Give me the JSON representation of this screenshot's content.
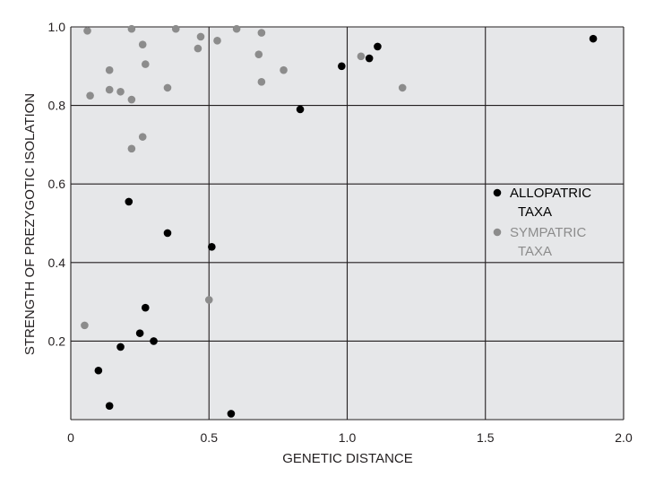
{
  "chart_data": {
    "type": "scatter",
    "xlabel": "GENETIC DISTANCE",
    "ylabel": "STRENGTH OF PREZYGOTIC ISOLATION",
    "xlim": [
      0,
      2.0
    ],
    "ylim": [
      0,
      1.0
    ],
    "x_ticks": [
      {
        "value": 0,
        "label": "0"
      },
      {
        "value": 0.5,
        "label": "0.5"
      },
      {
        "value": 1.0,
        "label": "1.0"
      },
      {
        "value": 1.5,
        "label": "1.5"
      },
      {
        "value": 2.0,
        "label": "2.0"
      }
    ],
    "y_ticks": [
      {
        "value": 0.2,
        "label": "0.2"
      },
      {
        "value": 0.4,
        "label": "0.4"
      },
      {
        "value": 0.6,
        "label": "0.6"
      },
      {
        "value": 0.8,
        "label": "0.8"
      },
      {
        "value": 1.0,
        "label": "1.0"
      }
    ],
    "grid": true,
    "legend_position": "right",
    "series": [
      {
        "name": "ALLOPATRIC TAXA",
        "legend_lines": [
          "ALLOPATRIC",
          "TAXA"
        ],
        "color": "#000000",
        "points": [
          {
            "x": 1.89,
            "y": 0.97
          },
          {
            "x": 1.11,
            "y": 0.95
          },
          {
            "x": 1.08,
            "y": 0.92
          },
          {
            "x": 0.98,
            "y": 0.9
          },
          {
            "x": 0.83,
            "y": 0.79
          },
          {
            "x": 0.21,
            "y": 0.555
          },
          {
            "x": 0.35,
            "y": 0.475
          },
          {
            "x": 0.51,
            "y": 0.44
          },
          {
            "x": 0.27,
            "y": 0.285
          },
          {
            "x": 0.25,
            "y": 0.22
          },
          {
            "x": 0.3,
            "y": 0.2
          },
          {
            "x": 0.18,
            "y": 0.185
          },
          {
            "x": 0.1,
            "y": 0.125
          },
          {
            "x": 0.14,
            "y": 0.035
          },
          {
            "x": 0.58,
            "y": 0.015
          }
        ]
      },
      {
        "name": "SYMPATRIC TAXA",
        "legend_lines": [
          "SYMPATRIC",
          "TAXA"
        ],
        "color": "#8c8c8c",
        "points": [
          {
            "x": 0.06,
            "y": 0.99
          },
          {
            "x": 0.22,
            "y": 0.995
          },
          {
            "x": 0.38,
            "y": 0.995
          },
          {
            "x": 0.6,
            "y": 0.995
          },
          {
            "x": 0.47,
            "y": 0.975
          },
          {
            "x": 0.69,
            "y": 0.985
          },
          {
            "x": 0.53,
            "y": 0.965
          },
          {
            "x": 0.26,
            "y": 0.955
          },
          {
            "x": 0.46,
            "y": 0.945
          },
          {
            "x": 0.68,
            "y": 0.93
          },
          {
            "x": 1.05,
            "y": 0.925
          },
          {
            "x": 0.27,
            "y": 0.905
          },
          {
            "x": 0.14,
            "y": 0.89
          },
          {
            "x": 0.77,
            "y": 0.89
          },
          {
            "x": 0.69,
            "y": 0.86
          },
          {
            "x": 0.35,
            "y": 0.845
          },
          {
            "x": 1.2,
            "y": 0.845
          },
          {
            "x": 0.14,
            "y": 0.84
          },
          {
            "x": 0.18,
            "y": 0.835
          },
          {
            "x": 0.07,
            "y": 0.825
          },
          {
            "x": 0.22,
            "y": 0.815
          },
          {
            "x": 0.26,
            "y": 0.72
          },
          {
            "x": 0.22,
            "y": 0.69
          },
          {
            "x": 0.5,
            "y": 0.305
          },
          {
            "x": 0.05,
            "y": 0.24
          }
        ]
      }
    ]
  }
}
